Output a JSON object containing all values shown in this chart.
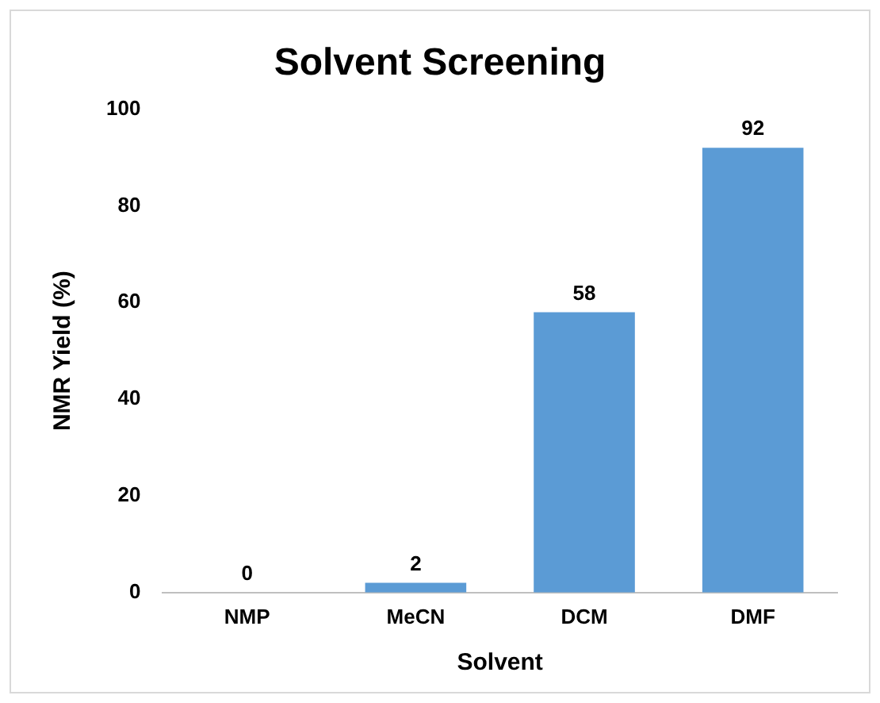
{
  "chart_data": {
    "type": "bar",
    "title": "Solvent Screening",
    "xlabel": "Solvent",
    "ylabel": "NMR Yield (%)",
    "categories": [
      "NMP",
      "MeCN",
      "DCM",
      "DMF"
    ],
    "values": [
      0,
      2,
      58,
      92
    ],
    "color": "#5b9bd5",
    "ylim": [
      0,
      100
    ],
    "yticks": [
      0,
      20,
      40,
      60,
      80,
      100
    ],
    "grid": false,
    "data_labels": true
  }
}
